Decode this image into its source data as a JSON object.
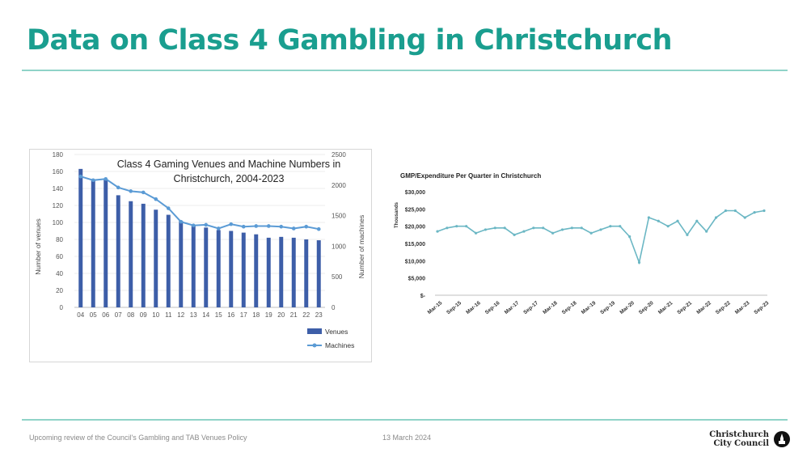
{
  "slide": {
    "title": "Data on Class 4 Gambling in Christchurch",
    "footer_left": "Upcoming review of the Council's Gambling and TAB Venues Policy",
    "footer_date": "13 March 2024",
    "logo_line1": "Christchurch",
    "logo_line2": "City Council"
  },
  "colors": {
    "title": "#1a9e8f",
    "rule": "#8fd3c8",
    "venues_bar": "#3d5ea8",
    "machines_line": "#5b9bd5",
    "gmp_line": "#6bb7c4"
  },
  "chart_data": [
    {
      "type": "bar",
      "title": "Class 4 Gaming Venues and Machine Numbers in Christchurch, 2004-2023",
      "title_line1": "Class 4 Gaming Venues and Machine Numbers in",
      "title_line2": "Christchurch, 2004-2023",
      "categories": [
        "04",
        "05",
        "06",
        "07",
        "08",
        "09",
        "10",
        "11",
        "12",
        "13",
        "14",
        "15",
        "16",
        "17",
        "18",
        "19",
        "20",
        "21",
        "22",
        "23"
      ],
      "ylabel": "Number of venues",
      "y2label": "Number of machines",
      "ylim": [
        0,
        180
      ],
      "y_ticks": [
        "0",
        "20",
        "40",
        "60",
        "80",
        "100",
        "120",
        "140",
        "160",
        "180"
      ],
      "y2lim": [
        0,
        2500
      ],
      "y2_ticks": [
        "0",
        "500",
        "1000",
        "1500",
        "2000",
        "2500"
      ],
      "series": [
        {
          "name": "Venues",
          "kind": "bar",
          "axis": "left",
          "values": [
            163,
            150,
            150,
            132,
            125,
            122,
            115,
            109,
            102,
            97,
            94,
            91,
            90,
            88,
            86,
            82,
            83,
            82,
            80,
            79
          ]
        },
        {
          "name": "Machines",
          "kind": "line",
          "axis": "right",
          "values": [
            2140,
            2080,
            2100,
            1960,
            1900,
            1880,
            1770,
            1620,
            1400,
            1340,
            1350,
            1290,
            1360,
            1320,
            1330,
            1330,
            1320,
            1290,
            1320,
            1280
          ]
        }
      ],
      "legend_position": "bottom-right"
    },
    {
      "type": "line",
      "title": "GMP/Expenditure Per Quarter in Christchurch",
      "ylabel": "Thousands",
      "ylim": [
        0,
        30000
      ],
      "y_ticks": [
        "$-",
        "$5,000",
        "$10,000",
        "$15,000",
        "$20,000",
        "$25,000",
        "$30,000"
      ],
      "x_tick_labels": [
        "Mar-15",
        "Sep-15",
        "Mar-16",
        "Sep-16",
        "Mar-17",
        "Sep-17",
        "Mar-18",
        "Sep-18",
        "Mar-19",
        "Sep-19",
        "Mar-20",
        "Sep-20",
        "Mar-21",
        "Sep-21",
        "Mar-22",
        "Sep-22",
        "Mar-23",
        "Sep-23"
      ],
      "x": [
        "Mar-15",
        "Jun-15",
        "Sep-15",
        "Dec-15",
        "Mar-16",
        "Jun-16",
        "Sep-16",
        "Dec-16",
        "Mar-17",
        "Jun-17",
        "Sep-17",
        "Dec-17",
        "Mar-18",
        "Jun-18",
        "Sep-18",
        "Dec-18",
        "Mar-19",
        "Jun-19",
        "Sep-19",
        "Dec-19",
        "Mar-20",
        "Jun-20",
        "Sep-20",
        "Dec-20",
        "Mar-21",
        "Jun-21",
        "Sep-21",
        "Dec-21",
        "Mar-22",
        "Jun-22",
        "Sep-22",
        "Dec-22",
        "Mar-23",
        "Jun-23",
        "Sep-23"
      ],
      "series": [
        {
          "name": "",
          "values": [
            18500,
            19500,
            20000,
            20000,
            18000,
            19000,
            19500,
            19500,
            17500,
            18500,
            19500,
            19500,
            18000,
            19000,
            19500,
            19500,
            18000,
            19000,
            20000,
            20000,
            17000,
            9500,
            22500,
            21500,
            20000,
            21500,
            17500,
            21500,
            18500,
            22500,
            24500,
            24500,
            22500,
            24000,
            24500
          ]
        }
      ]
    }
  ]
}
